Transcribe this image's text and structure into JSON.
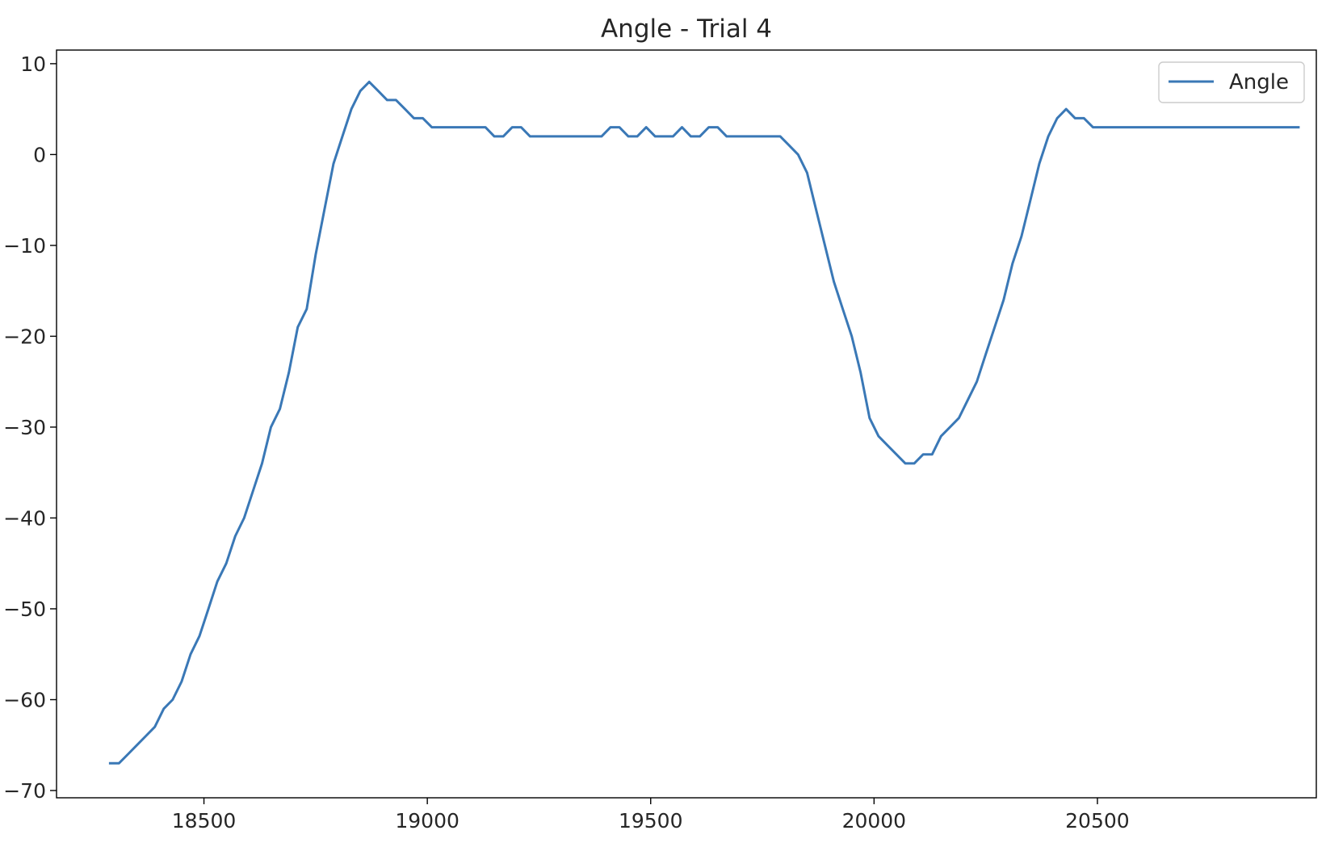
{
  "chart_data": {
    "type": "line",
    "title": "Angle - Trial 4",
    "xlabel": "",
    "ylabel": "",
    "xlim": [
      18170,
      20990
    ],
    "ylim": [
      -70.8,
      11.5
    ],
    "x_ticks": [
      18500,
      19000,
      19500,
      20000,
      20500
    ],
    "y_ticks": [
      10,
      0,
      -10,
      -20,
      -30,
      -40,
      -50,
      -60,
      -70
    ],
    "legend": {
      "position": "top-right",
      "entries": [
        "Angle"
      ]
    },
    "grid": false,
    "colors": {
      "Angle": "#3a78b6"
    },
    "series": [
      {
        "name": "Angle",
        "points": [
          [
            18290,
            -67
          ],
          [
            18310,
            -67
          ],
          [
            18330,
            -66
          ],
          [
            18350,
            -65
          ],
          [
            18370,
            -64
          ],
          [
            18390,
            -63
          ],
          [
            18410,
            -61
          ],
          [
            18430,
            -60
          ],
          [
            18450,
            -58
          ],
          [
            18470,
            -55
          ],
          [
            18490,
            -53
          ],
          [
            18510,
            -50
          ],
          [
            18530,
            -47
          ],
          [
            18550,
            -45
          ],
          [
            18570,
            -42
          ],
          [
            18590,
            -40
          ],
          [
            18610,
            -37
          ],
          [
            18630,
            -34
          ],
          [
            18650,
            -30
          ],
          [
            18670,
            -28
          ],
          [
            18690,
            -24
          ],
          [
            18710,
            -19
          ],
          [
            18730,
            -17
          ],
          [
            18750,
            -11
          ],
          [
            18770,
            -6
          ],
          [
            18790,
            -1
          ],
          [
            18810,
            2
          ],
          [
            18830,
            5
          ],
          [
            18850,
            7
          ],
          [
            18870,
            8
          ],
          [
            18890,
            7
          ],
          [
            18910,
            6
          ],
          [
            18930,
            6
          ],
          [
            18950,
            5
          ],
          [
            18970,
            4
          ],
          [
            18990,
            4
          ],
          [
            19010,
            3
          ],
          [
            19030,
            3
          ],
          [
            19050,
            3
          ],
          [
            19070,
            3
          ],
          [
            19090,
            3
          ],
          [
            19110,
            3
          ],
          [
            19130,
            3
          ],
          [
            19150,
            2
          ],
          [
            19170,
            2
          ],
          [
            19190,
            3
          ],
          [
            19210,
            3
          ],
          [
            19230,
            2
          ],
          [
            19250,
            2
          ],
          [
            19270,
            2
          ],
          [
            19290,
            2
          ],
          [
            19310,
            2
          ],
          [
            19330,
            2
          ],
          [
            19350,
            2
          ],
          [
            19370,
            2
          ],
          [
            19390,
            2
          ],
          [
            19410,
            3
          ],
          [
            19430,
            3
          ],
          [
            19450,
            2
          ],
          [
            19470,
            2
          ],
          [
            19490,
            3
          ],
          [
            19510,
            2
          ],
          [
            19530,
            2
          ],
          [
            19550,
            2
          ],
          [
            19570,
            3
          ],
          [
            19590,
            2
          ],
          [
            19610,
            2
          ],
          [
            19630,
            3
          ],
          [
            19650,
            3
          ],
          [
            19670,
            2
          ],
          [
            19690,
            2
          ],
          [
            19710,
            2
          ],
          [
            19730,
            2
          ],
          [
            19750,
            2
          ],
          [
            19770,
            2
          ],
          [
            19790,
            2
          ],
          [
            19810,
            1
          ],
          [
            19830,
            0
          ],
          [
            19850,
            -2
          ],
          [
            19870,
            -6
          ],
          [
            19890,
            -10
          ],
          [
            19910,
            -14
          ],
          [
            19930,
            -17
          ],
          [
            19950,
            -20
          ],
          [
            19970,
            -24
          ],
          [
            19990,
            -29
          ],
          [
            20010,
            -31
          ],
          [
            20030,
            -32
          ],
          [
            20050,
            -33
          ],
          [
            20070,
            -34
          ],
          [
            20090,
            -34
          ],
          [
            20110,
            -33
          ],
          [
            20130,
            -33
          ],
          [
            20150,
            -31
          ],
          [
            20170,
            -30
          ],
          [
            20190,
            -29
          ],
          [
            20210,
            -27
          ],
          [
            20230,
            -25
          ],
          [
            20250,
            -22
          ],
          [
            20270,
            -19
          ],
          [
            20290,
            -16
          ],
          [
            20310,
            -12
          ],
          [
            20330,
            -9
          ],
          [
            20350,
            -5
          ],
          [
            20370,
            -1
          ],
          [
            20390,
            2
          ],
          [
            20410,
            4
          ],
          [
            20430,
            5
          ],
          [
            20450,
            4
          ],
          [
            20470,
            4
          ],
          [
            20490,
            3
          ],
          [
            20510,
            3
          ],
          [
            20550,
            3
          ],
          [
            20600,
            3
          ],
          [
            20650,
            3
          ],
          [
            20700,
            3
          ],
          [
            20750,
            3
          ],
          [
            20800,
            3
          ],
          [
            20850,
            3
          ],
          [
            20900,
            3
          ],
          [
            20950,
            3
          ]
        ]
      }
    ]
  }
}
